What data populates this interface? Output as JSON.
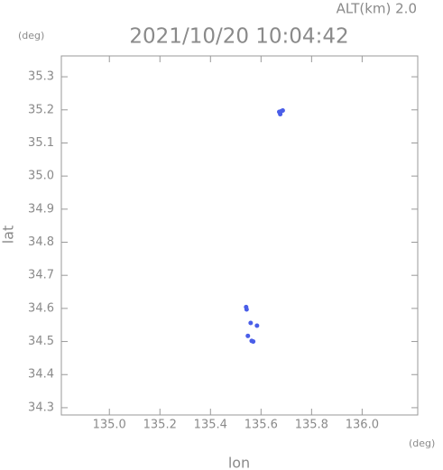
{
  "chart_data": {
    "type": "scatter",
    "title": "2021/10/20 10:04:42",
    "subtitle": "ALT(km) 2.0",
    "y_unit": "(deg)",
    "x_unit": "(deg)",
    "x_label": "lon",
    "y_label": "lat",
    "xlim": [
      134.81,
      136.22
    ],
    "ylim": [
      34.278,
      35.363
    ],
    "xticks": [
      {
        "value": 135,
        "label": "135.0"
      },
      135.2,
      135.4,
      135.6,
      135.8,
      {
        "value": 136,
        "label": "136.0"
      }
    ],
    "yticks": [
      34.3,
      34.4,
      34.5,
      34.6,
      34.7,
      34.8,
      34.9,
      {
        "value": 35,
        "label": "35.0"
      },
      35.1,
      35.2,
      35.3
    ],
    "color": "#4a5ee8",
    "x": [
      135.672,
      135.68,
      135.676,
      135.686,
      135.541,
      135.543,
      135.584,
      135.559,
      135.548,
      135.563,
      135.569
    ],
    "y": [
      35.194,
      35.196,
      35.187,
      35.198,
      34.604,
      34.597,
      34.548,
      34.556,
      34.517,
      34.502,
      34.5
    ]
  }
}
